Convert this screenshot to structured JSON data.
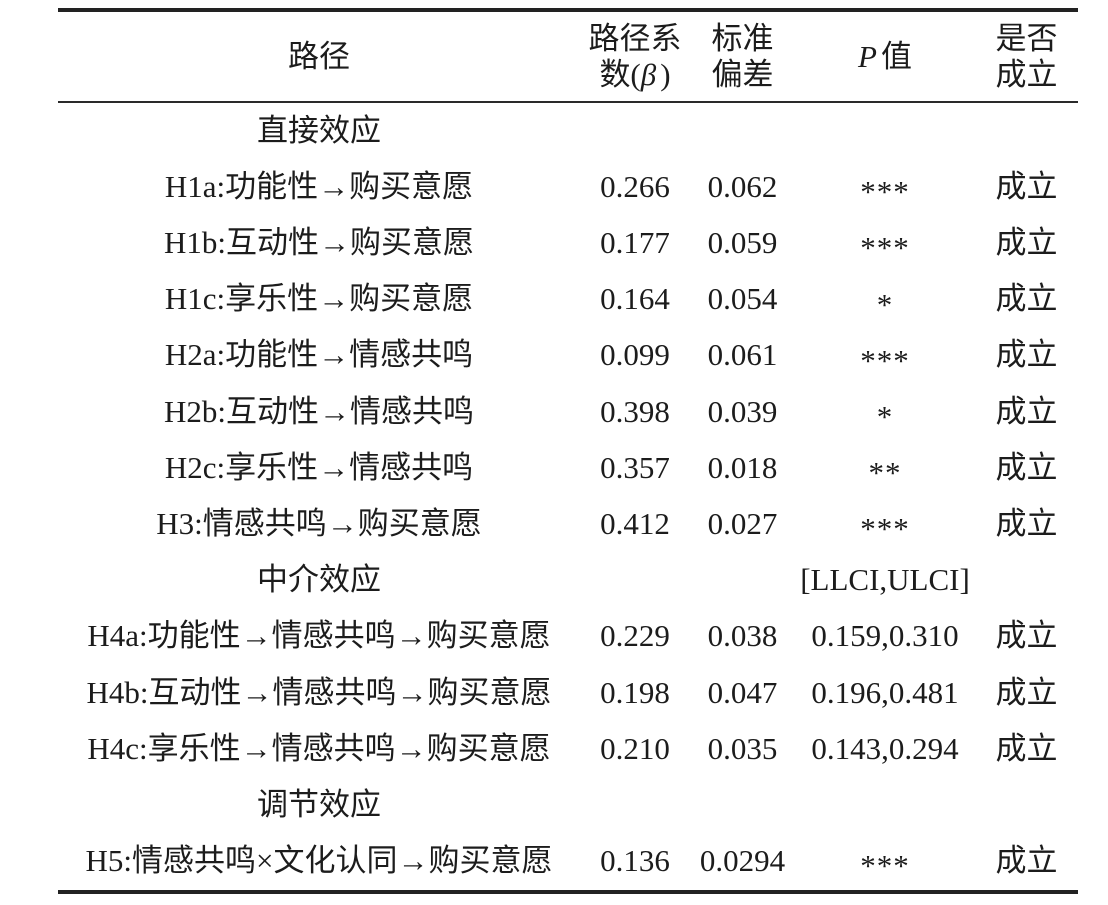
{
  "table": {
    "header": {
      "path": "路径",
      "beta_line1": "路径系",
      "beta_line2_pre": "数(",
      "beta_symbol": "β",
      "beta_line2_post": ")",
      "sd_line1": "标准",
      "sd_line2": "偏差",
      "p_symbol": "P",
      "p_text": "值",
      "result_line1": "是否",
      "result_line2": "成立"
    },
    "rows": [
      {
        "type": "section",
        "path": "直接效应",
        "beta": "",
        "sd": "",
        "p": "",
        "result": ""
      },
      {
        "type": "data",
        "path": "H1a:功能性→购买意愿",
        "beta": "0.266",
        "sd": "0.062",
        "p": "***",
        "result": "成立"
      },
      {
        "type": "data",
        "path": "H1b:互动性→购买意愿",
        "beta": "0.177",
        "sd": "0.059",
        "p": "***",
        "result": "成立"
      },
      {
        "type": "data",
        "path": "H1c:享乐性→购买意愿",
        "beta": "0.164",
        "sd": "0.054",
        "p": "*",
        "result": "成立"
      },
      {
        "type": "data",
        "path": "H2a:功能性→情感共鸣",
        "beta": "0.099",
        "sd": "0.061",
        "p": "***",
        "result": "成立"
      },
      {
        "type": "data",
        "path": "H2b:互动性→情感共鸣",
        "beta": "0.398",
        "sd": "0.039",
        "p": "*",
        "result": "成立"
      },
      {
        "type": "data",
        "path": "H2c:享乐性→情感共鸣",
        "beta": "0.357",
        "sd": "0.018",
        "p": "**",
        "result": "成立"
      },
      {
        "type": "data",
        "path": "H3:情感共鸣→购买意愿",
        "beta": "0.412",
        "sd": "0.027",
        "p": "***",
        "result": "成立"
      },
      {
        "type": "section",
        "path": "中介效应",
        "beta": "",
        "sd": "",
        "p": "[LLCI,ULCI]",
        "result": ""
      },
      {
        "type": "data",
        "path": "H4a:功能性→情感共鸣→购买意愿",
        "beta": "0.229",
        "sd": "0.038",
        "p": "0.159,0.310",
        "result": "成立"
      },
      {
        "type": "data",
        "path": "H4b:互动性→情感共鸣→购买意愿",
        "beta": "0.198",
        "sd": "0.047",
        "p": "0.196,0.481",
        "result": "成立"
      },
      {
        "type": "data",
        "path": "H4c:享乐性→情感共鸣→购买意愿",
        "beta": "0.210",
        "sd": "0.035",
        "p": "0.143,0.294",
        "result": "成立"
      },
      {
        "type": "section",
        "path": "调节效应",
        "beta": "",
        "sd": "",
        "p": "",
        "result": ""
      },
      {
        "type": "data",
        "path": "H5:情感共鸣×文化认同→购买意愿",
        "beta": "0.136",
        "sd": "0.0294",
        "p": "***",
        "result": "成立"
      }
    ]
  }
}
